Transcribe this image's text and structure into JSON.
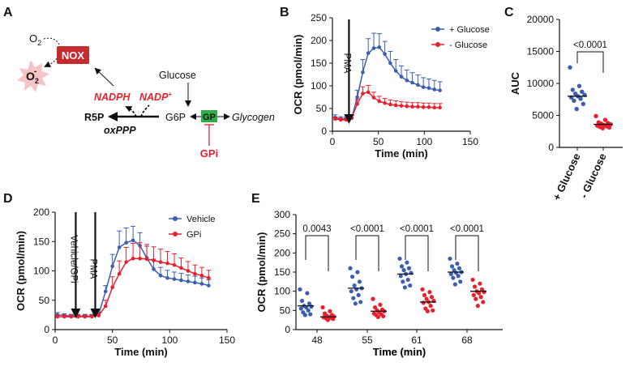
{
  "figure": {
    "panels": {
      "A": "A",
      "B": "B",
      "C": "C",
      "D": "D",
      "E": "E"
    },
    "colors": {
      "blue": "#3b5eb0",
      "red": "#e8202e",
      "nox": "#c62b30",
      "gp": "#2fae48",
      "burst": "#f6c3c6",
      "ink": "#111111",
      "grey": "#9aa0a6"
    }
  },
  "schematic": {
    "o2": "O",
    "o2_sub": "2",
    "superoxide": "O",
    "superoxide_sub": "2",
    "superoxide_sup": "-",
    "nox": "NOX",
    "nadph": "NADPH",
    "nadp": "NADP",
    "nadp_sup": "+",
    "r5p": "R5P",
    "oxppp": "oxPPP",
    "g6p": "G6P",
    "glucose": "Glucose",
    "gp": "GP",
    "glycogen": "Glycogen",
    "gpi": "GPi"
  },
  "chart_data": [
    {
      "panel": "B",
      "type": "line",
      "xlabel": "Time (min)",
      "ylabel": "OCR (pmol/min)",
      "xlim": [
        0,
        150
      ],
      "ylim": [
        0,
        250
      ],
      "xticks": [
        0,
        50,
        100,
        150
      ],
      "yticks": [
        0,
        50,
        100,
        150,
        200,
        250
      ],
      "legend_position": "top-right",
      "annotations": [
        {
          "text": "PMA",
          "x": 18
        }
      ],
      "x": [
        3,
        9,
        15,
        21,
        27,
        33,
        39,
        45,
        51,
        57,
        63,
        69,
        75,
        81,
        87,
        93,
        99,
        105,
        111,
        117
      ],
      "series": [
        {
          "name": "+ Glucose",
          "color": "#3b5eb0",
          "values": [
            30,
            27,
            27,
            29,
            75,
            130,
            172,
            183,
            185,
            170,
            150,
            133,
            120,
            112,
            107,
            102,
            97,
            95,
            92,
            90
          ],
          "error": [
            6,
            5,
            5,
            6,
            15,
            28,
            32,
            33,
            30,
            28,
            26,
            25,
            24,
            23,
            22,
            22,
            21,
            20,
            20,
            19
          ]
        },
        {
          "name": "- Glucose",
          "color": "#e8202e",
          "values": [
            27,
            25,
            25,
            30,
            60,
            83,
            86,
            74,
            66,
            62,
            59,
            57,
            56,
            55,
            54,
            54,
            53,
            53,
            52,
            52
          ],
          "error": [
            4,
            4,
            4,
            5,
            10,
            15,
            15,
            12,
            11,
            10,
            10,
            10,
            9,
            9,
            9,
            9,
            9,
            9,
            9,
            9
          ]
        }
      ]
    },
    {
      "panel": "C",
      "type": "scatter",
      "ylabel": "AUC",
      "ylim": [
        0,
        20000
      ],
      "yticks": [
        0,
        5000,
        10000,
        15000,
        20000
      ],
      "categories": [
        "+ Glucose",
        "- Glucose"
      ],
      "comparison": "<0.0001",
      "groups": [
        {
          "name": "+ Glucose",
          "color": "#3b5eb0",
          "median": 8000,
          "values": [
            12500,
            9600,
            9000,
            8700,
            8400,
            8200,
            8000,
            7800,
            7600,
            7300,
            6800,
            6000
          ]
        },
        {
          "name": "- Glucose",
          "color": "#e8202e",
          "median": 3600,
          "values": [
            4900,
            4300,
            3900,
            3800,
            3700,
            3600,
            3500,
            3400,
            3300,
            3200,
            3100,
            3000
          ]
        }
      ]
    },
    {
      "panel": "D",
      "type": "line",
      "xlabel": "Time (min)",
      "ylabel": "OCR (pmol/min)",
      "xlim": [
        0,
        150
      ],
      "ylim": [
        0,
        200
      ],
      "xticks": [
        0,
        50,
        100,
        150
      ],
      "yticks": [
        0,
        50,
        100,
        150,
        200
      ],
      "legend_position": "top-right",
      "annotations": [
        {
          "text": "Vehicle/GPi",
          "x": 18
        },
        {
          "text": "PMA",
          "x": 35
        }
      ],
      "x": [
        2,
        8,
        14,
        20,
        26,
        32,
        38,
        44,
        50,
        56,
        62,
        68,
        74,
        80,
        86,
        92,
        98,
        104,
        110,
        116,
        122,
        128,
        134
      ],
      "series": [
        {
          "name": "Vehicle",
          "color": "#3b5eb0",
          "values": [
            25,
            24,
            23,
            23,
            23,
            23,
            26,
            65,
            108,
            140,
            148,
            152,
            143,
            122,
            103,
            92,
            88,
            86,
            84,
            82,
            80,
            78,
            75
          ],
          "error": [
            4,
            3,
            3,
            3,
            3,
            3,
            4,
            10,
            20,
            28,
            25,
            24,
            22,
            20,
            17,
            14,
            13,
            12,
            12,
            11,
            11,
            10,
            10
          ]
        },
        {
          "name": "GPi",
          "color": "#e8202e",
          "values": [
            22,
            22,
            22,
            22,
            22,
            22,
            24,
            40,
            72,
            95,
            115,
            121,
            121,
            120,
            118,
            115,
            113,
            110,
            105,
            100,
            95,
            92,
            88
          ],
          "error": [
            3,
            3,
            3,
            3,
            3,
            3,
            4,
            10,
            18,
            22,
            25,
            26,
            27,
            25,
            23,
            22,
            20,
            19,
            17,
            16,
            15,
            14,
            13
          ]
        }
      ]
    },
    {
      "panel": "E",
      "type": "scatter",
      "xlabel": "Time (min)",
      "ylabel": "OCR (pmol/min)",
      "ylim": [
        0,
        300
      ],
      "yticks": [
        0,
        50,
        100,
        150,
        200,
        250,
        300
      ],
      "categories": [
        "48",
        "55",
        "61",
        "68"
      ],
      "comparisons": [
        "0.0043",
        "<0.0001",
        "<0.0001",
        "<0.0001"
      ],
      "groups": [
        {
          "category": "48",
          "name": "Vehicle",
          "color": "#3b5eb0",
          "median": 62,
          "values": [
            105,
            95,
            75,
            68,
            62,
            60,
            58,
            55,
            50,
            45,
            40,
            38
          ]
        },
        {
          "category": "48",
          "name": "GPi",
          "color": "#e8202e",
          "median": 33,
          "values": [
            58,
            48,
            42,
            38,
            36,
            34,
            33,
            32,
            31,
            30,
            28,
            25
          ]
        },
        {
          "category": "55",
          "name": "Vehicle",
          "color": "#3b5eb0",
          "median": 108,
          "values": [
            160,
            150,
            138,
            125,
            115,
            108,
            105,
            100,
            90,
            82,
            72,
            68
          ]
        },
        {
          "category": "55",
          "name": "GPi",
          "color": "#e8202e",
          "median": 48,
          "values": [
            80,
            65,
            58,
            52,
            50,
            48,
            45,
            42,
            40,
            38,
            35,
            33
          ]
        },
        {
          "category": "61",
          "name": "Vehicle",
          "color": "#3b5eb0",
          "median": 145,
          "values": [
            185,
            175,
            165,
            160,
            155,
            148,
            145,
            140,
            130,
            125,
            115,
            110
          ]
        },
        {
          "category": "61",
          "name": "GPi",
          "color": "#e8202e",
          "median": 72,
          "values": [
            105,
            98,
            90,
            85,
            80,
            75,
            72,
            70,
            62,
            55,
            50,
            48
          ]
        },
        {
          "category": "68",
          "name": "Vehicle",
          "color": "#3b5eb0",
          "median": 150,
          "values": [
            185,
            172,
            165,
            160,
            155,
            150,
            148,
            145,
            140,
            135,
            125,
            118
          ]
        },
        {
          "category": "68",
          "name": "GPi",
          "color": "#e8202e",
          "median": 100,
          "values": [
            130,
            120,
            112,
            105,
            100,
            98,
            95,
            90,
            85,
            80,
            72,
            62
          ]
        }
      ]
    }
  ]
}
